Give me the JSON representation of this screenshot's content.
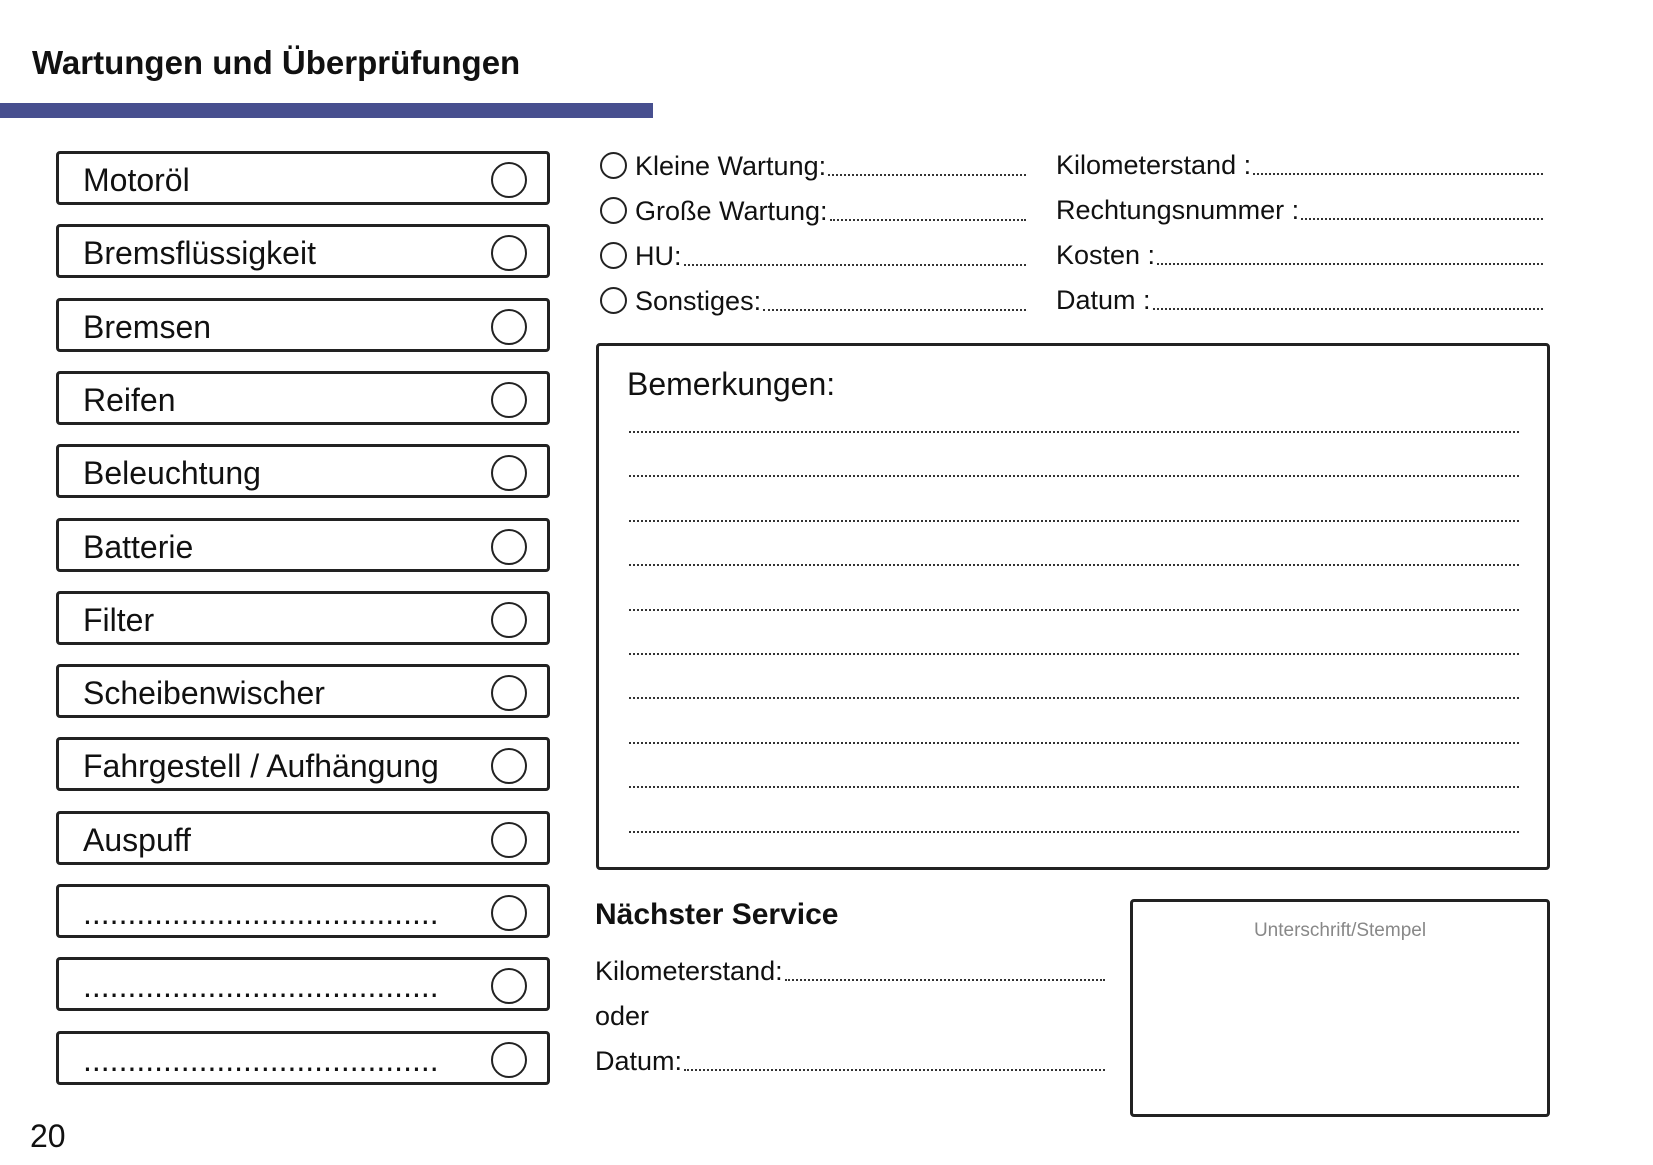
{
  "header": {
    "title": "Wartungen und Überprüfungen",
    "accent_color": "#474f8f"
  },
  "checklist": [
    {
      "label": "Motoröl"
    },
    {
      "label": "Bremsflüssigkeit"
    },
    {
      "label": "Bremsen"
    },
    {
      "label": "Reifen"
    },
    {
      "label": "Beleuchtung"
    },
    {
      "label": "Batterie"
    },
    {
      "label": "Filter"
    },
    {
      "label": "Scheibenwischer"
    },
    {
      "label": "Fahrgestell / Aufhängung"
    },
    {
      "label": "Auspuff"
    },
    {
      "label": "........................................"
    },
    {
      "label": "........................................"
    },
    {
      "label": "........................................"
    }
  ],
  "service_types": [
    {
      "label": "Kleine Wartung:"
    },
    {
      "label": "Große Wartung:"
    },
    {
      "label": "HU:"
    },
    {
      "label": "Sonstiges:"
    }
  ],
  "details": [
    {
      "label": "Kilometerstand :"
    },
    {
      "label": "Rechtungsnummer :"
    },
    {
      "label": "Kosten :"
    },
    {
      "label": "Datum :"
    }
  ],
  "remarks": {
    "title": "Bemerkungen:"
  },
  "next_service": {
    "title": "Nächster Service",
    "mileage_label": "Kilometerstand:",
    "or_label": "oder",
    "date_label": "Datum:"
  },
  "signature": {
    "label": "Unterschrift/Stempel"
  },
  "page_number": "20"
}
